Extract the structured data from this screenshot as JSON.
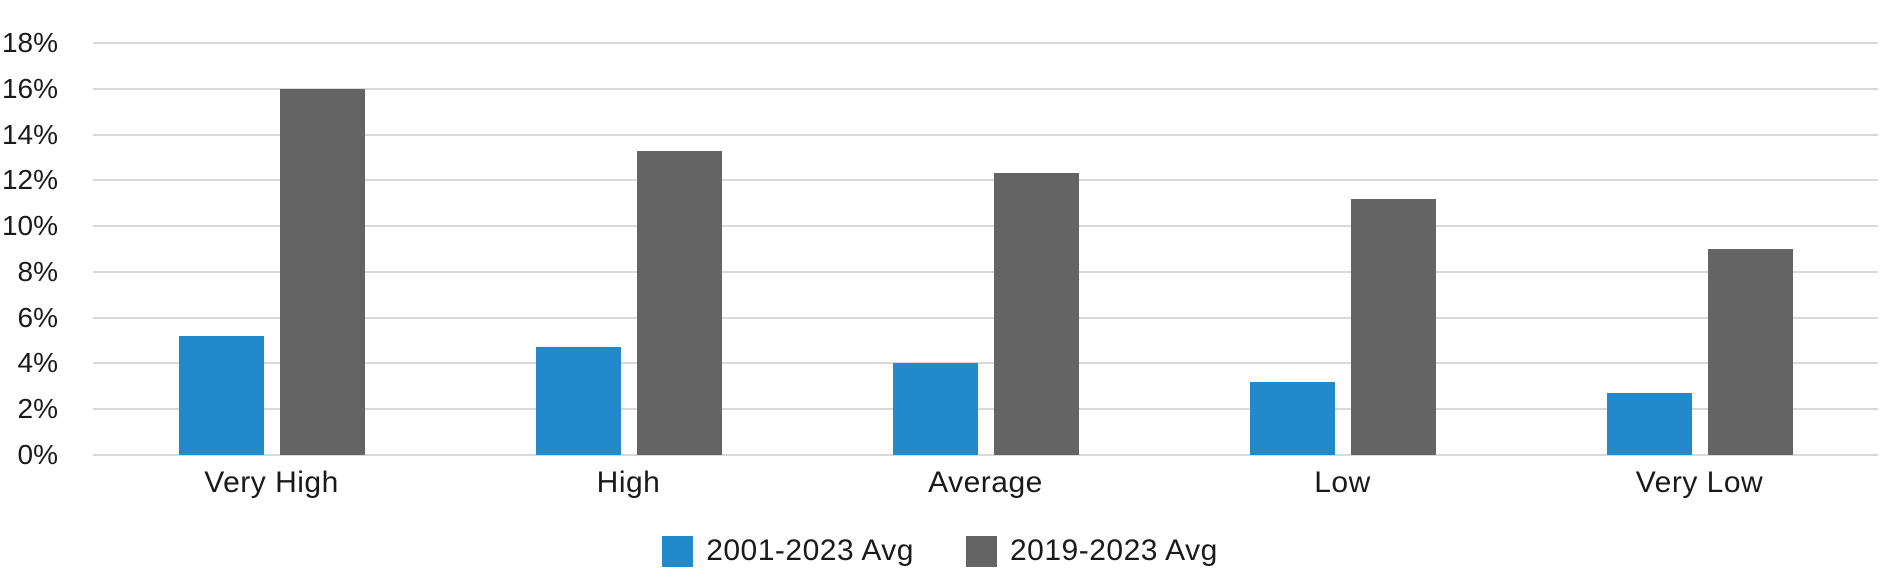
{
  "chart_data": {
    "type": "bar",
    "title": "",
    "xlabel": "",
    "ylabel": "",
    "categories": [
      "Very High",
      "High",
      "Average",
      "Low",
      "Very Low"
    ],
    "series": [
      {
        "name": "2001-2023 Avg",
        "color": "#2289CB",
        "values": [
          5.2,
          4.7,
          4.0,
          3.2,
          2.7
        ]
      },
      {
        "name": "2019-2023 Avg",
        "color": "#646464",
        "values": [
          16.0,
          13.3,
          12.3,
          11.2,
          9.0
        ]
      }
    ],
    "y_axis": {
      "min": 0,
      "max": 18,
      "step": 2,
      "tick_labels": [
        "0%",
        "2%",
        "4%",
        "6%",
        "8%",
        "10%",
        "12%",
        "14%",
        "16%",
        "18%"
      ],
      "format": "percent"
    },
    "grid": true,
    "gridline_color": "#D9D9D9",
    "legend_position": "bottom",
    "text_color": "#1A1A1A",
    "background_color": "#FFFFFF"
  }
}
